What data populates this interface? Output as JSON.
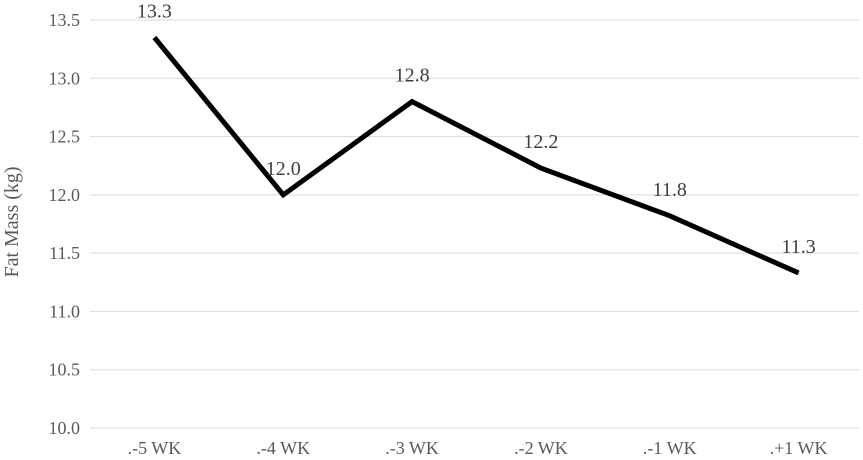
{
  "chart_data": {
    "type": "line",
    "title": "",
    "xlabel": "",
    "ylabel": "Fat Mass (kg)",
    "categories": [
      ".-5 WK",
      ".-4 WK",
      ".-3 WK",
      ".-2 WK",
      ".-1 WK",
      ".+1 WK"
    ],
    "series": [
      {
        "values": [
          13.35,
          12.0,
          12.8,
          12.23,
          11.82,
          11.33
        ],
        "data_labels": [
          "13.3",
          "12.0",
          "12.8",
          "12.2",
          "11.8",
          "11.3"
        ],
        "color": "#000000"
      }
    ],
    "ylim": [
      10.0,
      13.5
    ],
    "yticks": [
      "10.0",
      "10.5",
      "11.0",
      "11.5",
      "12.0",
      "12.5",
      "13.0",
      "13.5"
    ],
    "grid": true,
    "legend": "none"
  }
}
